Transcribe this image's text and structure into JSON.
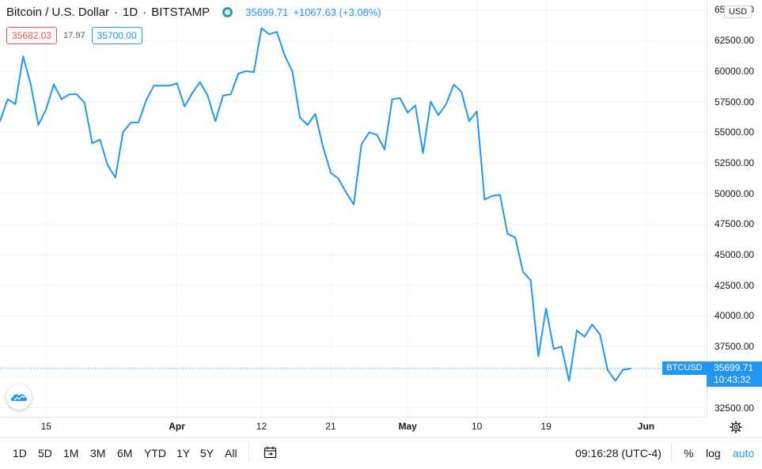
{
  "header": {
    "symbol_title": "Bitcoin / U.S. Dollar",
    "interval": "1D",
    "exchange": "BITSTAMP",
    "last_price": "35699.71",
    "change": "+1067.63 (+3.08%)",
    "bid": "35682.03",
    "spread": "17.97",
    "ask": "35700.00",
    "currency": "USD"
  },
  "price_scale": {
    "ticker_tag": "BTCUSD",
    "last_price_label": "35699.71",
    "countdown": "10:43:32"
  },
  "toolbar": {
    "ranges": [
      "1D",
      "5D",
      "1M",
      "3M",
      "6M",
      "YTD",
      "1Y",
      "5Y",
      "All"
    ],
    "time": "09:16:28 (UTC-4)",
    "percent_label": "%",
    "log_label": "log",
    "auto_label": "auto"
  },
  "colors": {
    "line": "#2196f3",
    "bid": "#ef5350",
    "status": "#26a69a"
  },
  "icons": [
    "status-dot-icon",
    "calendar-range-icon",
    "gear-icon",
    "tradingview-cloud-icon"
  ],
  "chart_data": {
    "type": "line",
    "ylim": [
      31500,
      66000
    ],
    "y_ticks": [
      32500,
      35000,
      37500,
      40000,
      42500,
      45000,
      47500,
      50000,
      52500,
      55000,
      57500,
      60000,
      62500,
      65000
    ],
    "y_tick_labels": [
      "32500.00",
      "35000.00",
      "37500.00",
      "40000.00",
      "42500.00",
      "45000.00",
      "47500.00",
      "50000.00",
      "52500.00",
      "55000.00",
      "57500.00",
      "60000.00",
      "62500.00",
      "65000.00"
    ],
    "x_ticks": [
      "15",
      "Apr",
      "12",
      "21",
      "May",
      "10",
      "19",
      "Jun"
    ],
    "x_tick_bold": [
      false,
      true,
      false,
      false,
      true,
      false,
      false,
      true
    ],
    "last_value": 35699.71,
    "series": [
      {
        "x": [
          "2021-03-09",
          "2021-03-10",
          "2021-03-11",
          "2021-03-12",
          "2021-03-13",
          "2021-03-14",
          "2021-03-15",
          "2021-03-16",
          "2021-03-17",
          "2021-03-18",
          "2021-03-19",
          "2021-03-20",
          "2021-03-21",
          "2021-03-22",
          "2021-03-23",
          "2021-03-24",
          "2021-03-25",
          "2021-03-26",
          "2021-03-27",
          "2021-03-28",
          "2021-03-29",
          "2021-03-30",
          "2021-03-31",
          "2021-04-01",
          "2021-04-02",
          "2021-04-03",
          "2021-04-04",
          "2021-04-05",
          "2021-04-06",
          "2021-04-07",
          "2021-04-08",
          "2021-04-09",
          "2021-04-10",
          "2021-04-11",
          "2021-04-12",
          "2021-04-13",
          "2021-04-14",
          "2021-04-15",
          "2021-04-16",
          "2021-04-17",
          "2021-04-18",
          "2021-04-19",
          "2021-04-20",
          "2021-04-21",
          "2021-04-22",
          "2021-04-23",
          "2021-04-24",
          "2021-04-25",
          "2021-04-26",
          "2021-04-27",
          "2021-04-28",
          "2021-04-29",
          "2021-04-30",
          "2021-05-01",
          "2021-05-02",
          "2021-05-03",
          "2021-05-04",
          "2021-05-05",
          "2021-05-06",
          "2021-05-07",
          "2021-05-08",
          "2021-05-09",
          "2021-05-10",
          "2021-05-11",
          "2021-05-12",
          "2021-05-13",
          "2021-05-14",
          "2021-05-15",
          "2021-05-16",
          "2021-05-17",
          "2021-05-18",
          "2021-05-19",
          "2021-05-20",
          "2021-05-21",
          "2021-05-22",
          "2021-05-23",
          "2021-05-24",
          "2021-05-25",
          "2021-05-26",
          "2021-05-27",
          "2021-05-28",
          "2021-05-29",
          "2021-05-30"
        ],
        "values": [
          55900,
          57700,
          57300,
          61200,
          58900,
          55600,
          56900,
          58900,
          57700,
          58100,
          58100,
          57400,
          54100,
          54400,
          52300,
          51300,
          55000,
          55800,
          55800,
          57600,
          58800,
          58800,
          58800,
          59000,
          57100,
          58200,
          59100,
          58000,
          55900,
          58000,
          58100,
          59800,
          60000,
          59900,
          63500,
          63000,
          63200,
          61300,
          60000,
          56200,
          55600,
          56500,
          53800,
          51700,
          51200,
          50100,
          49100,
          54000,
          55000,
          54800,
          53600,
          57700,
          57800,
          56600,
          57200,
          53300,
          57500,
          56400,
          57300,
          58900,
          58300,
          55900,
          56700,
          49500,
          49800,
          49900,
          46700,
          46400,
          43600,
          42900,
          36700,
          40600,
          37300,
          37500,
          34700,
          38800,
          38300,
          39300,
          38500,
          35600,
          34700,
          35600,
          35700
        ]
      }
    ]
  }
}
